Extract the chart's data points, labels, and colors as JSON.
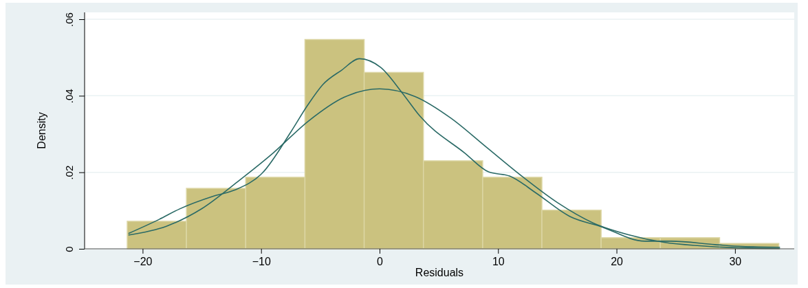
{
  "chart_data": {
    "type": "histogram",
    "xlabel": "Residuals",
    "ylabel": "Density",
    "xlim": [
      -24.9,
      35
    ],
    "xticks": [
      -20,
      -10,
      0,
      10,
      20,
      30
    ],
    "ylim": [
      0,
      0.06
    ],
    "yticks": [
      {
        "value": 0,
        "label": "0"
      },
      {
        "value": 0.02,
        "label": ".02"
      },
      {
        "value": 0.04,
        "label": ".04"
      },
      {
        "value": 0.06,
        "label": ".06"
      }
    ],
    "grid": "y",
    "series": [
      {
        "color": "#cbc27f",
        "bins": [
          -21.3,
          -16.3,
          -11.3,
          -6.3,
          -1.3,
          3.7,
          8.7,
          13.7,
          18.7,
          23.7,
          28.7,
          33.7
        ],
        "values": [
          0.0072,
          0.0158,
          0.0187,
          0.0547,
          0.0461,
          0.023,
          0.0187,
          0.0101,
          0.0029,
          0.0029,
          0.0014
        ]
      },
      {
        "type": "line",
        "color": "#2a6a66",
        "x": [
          -21.2,
          -18.6,
          -16.9,
          -14,
          -12.2,
          -9.9,
          -7.5,
          -6.1,
          -4.8,
          -3.2,
          -1.7,
          0.1,
          1.9,
          3.4,
          7.2,
          9.2,
          11,
          13.2,
          16.1,
          18.6,
          22.4,
          24.6,
          28.3,
          30.6,
          33.8
        ],
        "values": [
          0.004,
          0.0077,
          0.0104,
          0.0138,
          0.0154,
          0.0198,
          0.0305,
          0.0374,
          0.0429,
          0.0467,
          0.0497,
          0.0474,
          0.0408,
          0.0347,
          0.025,
          0.0201,
          0.019,
          0.0146,
          0.0084,
          0.0059,
          0.002,
          0.002,
          0.0011,
          0.0006,
          0.0004
        ]
      },
      {
        "type": "line",
        "color": "#2a6a66",
        "x": [
          -21.2,
          -18,
          -15,
          -12,
          -9,
          -6,
          -3,
          0,
          3,
          6,
          9,
          12,
          15,
          18,
          21,
          24,
          27,
          30,
          33.8
        ],
        "values": [
          0.0036,
          0.0059,
          0.0105,
          0.0175,
          0.025,
          0.0334,
          0.0396,
          0.0418,
          0.0398,
          0.0342,
          0.0266,
          0.019,
          0.0121,
          0.0068,
          0.0037,
          0.0017,
          0.0008,
          0.0003,
          0.0001
        ]
      }
    ]
  }
}
